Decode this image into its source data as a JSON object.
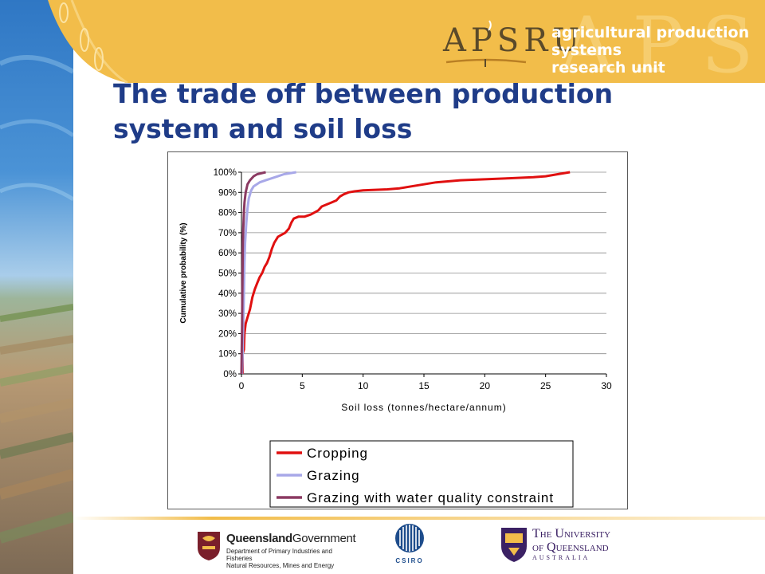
{
  "header": {
    "logo_text": "APSRU",
    "unit_name_line1": "agricultural production systems",
    "unit_name_line2": "research unit"
  },
  "slide": {
    "title_line1": "The trade off between production",
    "title_line2": "system and soil loss"
  },
  "colors": {
    "banner": "#f2bd4a",
    "title": "#1f3c88",
    "cropping": "#e01010",
    "grazing": "#a8a8e8",
    "grazing_wq": "#8b3a62"
  },
  "chart_data": {
    "type": "line",
    "xlabel": "Soil loss (tonnes/hectare/annum)",
    "ylabel": "Cumulative probability (%)",
    "xlim": [
      0,
      30
    ],
    "ylim": [
      0,
      100
    ],
    "x_ticks": [
      "0",
      "5",
      "10",
      "15",
      "20",
      "25",
      "30"
    ],
    "y_ticks": [
      "0%",
      "10%",
      "20%",
      "30%",
      "40%",
      "50%",
      "60%",
      "70%",
      "80%",
      "90%",
      "100%"
    ],
    "grid": "horizontal",
    "legend_position": "bottom",
    "series": [
      {
        "name": "Cropping",
        "color": "#e01010",
        "points": [
          [
            0.1,
            0
          ],
          [
            0.1,
            10
          ],
          [
            0.2,
            12
          ],
          [
            0.25,
            20
          ],
          [
            0.35,
            25
          ],
          [
            0.5,
            28
          ],
          [
            0.7,
            32
          ],
          [
            0.9,
            38
          ],
          [
            1.1,
            42
          ],
          [
            1.3,
            45
          ],
          [
            1.5,
            48
          ],
          [
            1.7,
            50
          ],
          [
            1.9,
            53
          ],
          [
            2.1,
            55
          ],
          [
            2.3,
            58
          ],
          [
            2.5,
            62
          ],
          [
            2.7,
            65
          ],
          [
            3.0,
            68
          ],
          [
            3.3,
            69
          ],
          [
            3.6,
            70
          ],
          [
            3.9,
            72
          ],
          [
            4.1,
            75
          ],
          [
            4.3,
            77
          ],
          [
            4.7,
            78
          ],
          [
            5.2,
            78
          ],
          [
            5.7,
            79
          ],
          [
            6.0,
            80
          ],
          [
            6.3,
            81
          ],
          [
            6.6,
            83
          ],
          [
            7.0,
            84
          ],
          [
            7.4,
            85
          ],
          [
            7.8,
            86
          ],
          [
            8.1,
            88
          ],
          [
            8.4,
            89
          ],
          [
            8.8,
            90
          ],
          [
            9.3,
            90.5
          ],
          [
            10,
            91
          ],
          [
            12,
            91.5
          ],
          [
            13,
            92
          ],
          [
            14,
            93
          ],
          [
            15,
            94
          ],
          [
            16,
            95
          ],
          [
            18,
            96
          ],
          [
            20,
            96.5
          ],
          [
            22,
            97
          ],
          [
            24,
            97.5
          ],
          [
            25,
            98
          ],
          [
            26,
            99
          ],
          [
            27,
            100
          ]
        ]
      },
      {
        "name": "Grazing",
        "color": "#a8a8e8",
        "points": [
          [
            0.05,
            0
          ],
          [
            0.1,
            10
          ],
          [
            0.15,
            25
          ],
          [
            0.2,
            40
          ],
          [
            0.25,
            55
          ],
          [
            0.3,
            65
          ],
          [
            0.4,
            75
          ],
          [
            0.5,
            82
          ],
          [
            0.6,
            87
          ],
          [
            0.8,
            91
          ],
          [
            1.0,
            93
          ],
          [
            1.5,
            95
          ],
          [
            2.0,
            96
          ],
          [
            2.5,
            97
          ],
          [
            3.0,
            98
          ],
          [
            3.5,
            99
          ],
          [
            4.5,
            100
          ]
        ]
      },
      {
        "name": "Grazing with water quality constraint",
        "color": "#8b3a62",
        "points": [
          [
            0,
            0
          ],
          [
            0.02,
            10
          ],
          [
            0.05,
            25
          ],
          [
            0.07,
            40
          ],
          [
            0.1,
            55
          ],
          [
            0.12,
            65
          ],
          [
            0.15,
            72
          ],
          [
            0.2,
            80
          ],
          [
            0.25,
            85
          ],
          [
            0.35,
            90
          ],
          [
            0.5,
            94
          ],
          [
            0.7,
            96
          ],
          [
            1.0,
            98
          ],
          [
            1.3,
            99
          ],
          [
            2.0,
            100
          ]
        ]
      }
    ]
  },
  "footer": {
    "ql_name_bold": "Queensland",
    "ql_name_rest": "Government",
    "ql_dept_line1": "Department of Primary Industries and Fisheries",
    "ql_dept_line2": "Natural Resources, Mines and Energy",
    "csiro": "CSIRO",
    "uq_line1": "The University",
    "uq_line2": "of Queensland",
    "uq_line3": "AUSTRALIA"
  }
}
